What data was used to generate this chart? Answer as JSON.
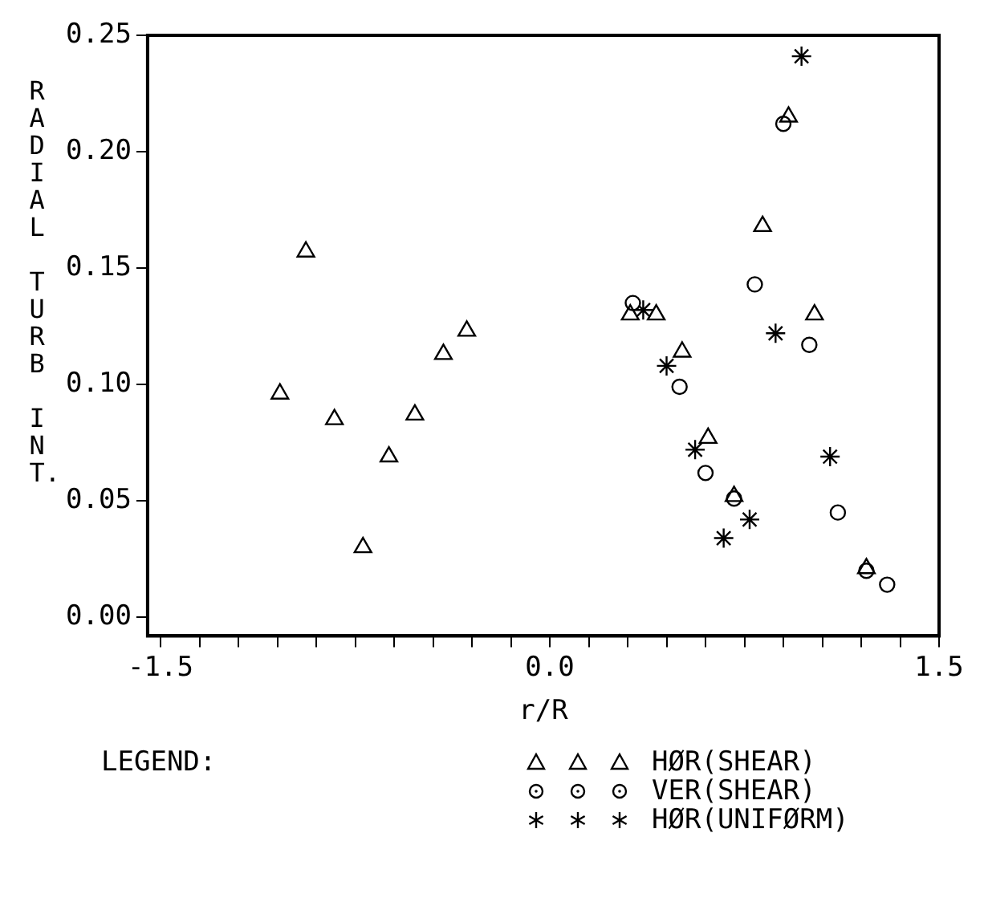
{
  "chart_data": {
    "type": "scatter",
    "xlabel": "r/R",
    "ylabel": "RADIAL TURB INT.",
    "legend_title": "LEGEND:",
    "legend": "bottom",
    "grid": false,
    "xlim": [
      -1.55,
      1.5
    ],
    "ylim": [
      -0.008,
      0.25
    ],
    "xticks": [
      {
        "value": -1.5,
        "label": "-1.5"
      },
      {
        "value": -1.35,
        "label": null
      },
      {
        "value": -1.2,
        "label": null
      },
      {
        "value": -1.05,
        "label": null
      },
      {
        "value": -0.9,
        "label": null
      },
      {
        "value": -0.75,
        "label": null
      },
      {
        "value": -0.6,
        "label": null
      },
      {
        "value": -0.45,
        "label": null
      },
      {
        "value": -0.3,
        "label": null
      },
      {
        "value": -0.15,
        "label": null
      },
      {
        "value": 0,
        "label": "0.0"
      },
      {
        "value": 0.15,
        "label": null
      },
      {
        "value": 0.3,
        "label": null
      },
      {
        "value": 0.45,
        "label": null
      },
      {
        "value": 0.6,
        "label": null
      },
      {
        "value": 0.75,
        "label": null
      },
      {
        "value": 0.9,
        "label": null
      },
      {
        "value": 1.05,
        "label": null
      },
      {
        "value": 1.2,
        "label": null
      },
      {
        "value": 1.35,
        "label": null
      },
      {
        "value": 1.5,
        "label": "1.5"
      }
    ],
    "yticks": [
      {
        "value": 0,
        "label": "0.00"
      },
      {
        "value": 0.05,
        "label": "0.05"
      },
      {
        "value": 0.1,
        "label": "0.10"
      },
      {
        "value": 0.15,
        "label": "0.15"
      },
      {
        "value": 0.2,
        "label": "0.20"
      },
      {
        "value": 0.25,
        "label": "0.25"
      }
    ],
    "series": [
      {
        "name": "HØR(SHEAR)",
        "color": "#000000",
        "marker": "triangle",
        "x": [
          -1.04,
          -0.94,
          -0.83,
          -0.72,
          -0.62,
          -0.52,
          -0.41,
          -0.32,
          0.31,
          0.41,
          0.51,
          0.61,
          0.71,
          0.82,
          0.92,
          1.02,
          1.22
        ],
        "values": [
          0.096,
          0.157,
          0.085,
          0.03,
          0.069,
          0.087,
          0.113,
          0.123,
          0.13,
          0.13,
          0.114,
          0.077,
          0.052,
          0.168,
          0.215,
          0.13,
          0.021
        ]
      },
      {
        "name": "VER(SHEAR)",
        "color": "#000000",
        "marker": "circle",
        "x": [
          0.32,
          0.5,
          0.6,
          0.71,
          0.79,
          0.9,
          1.0,
          1.11,
          1.22,
          1.3
        ],
        "values": [
          0.135,
          0.099,
          0.062,
          0.051,
          0.143,
          0.212,
          0.117,
          0.045,
          0.02,
          0.014
        ]
      },
      {
        "name": "HØR(UNIFØRM)",
        "color": "#000000",
        "marker": "cross",
        "x": [
          0.36,
          0.45,
          0.56,
          0.67,
          0.77,
          0.87,
          0.97,
          1.08
        ],
        "values": [
          0.132,
          0.108,
          0.072,
          0.034,
          0.042,
          0.122,
          0.241,
          0.069
        ]
      }
    ]
  }
}
